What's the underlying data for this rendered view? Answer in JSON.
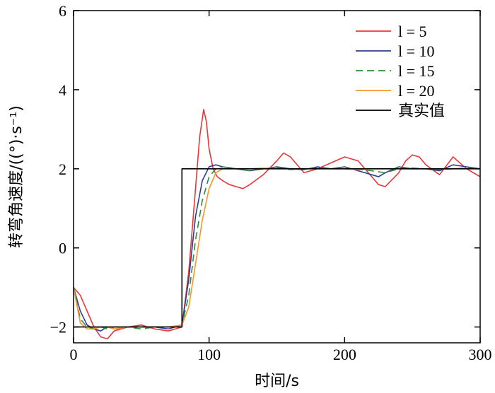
{
  "chart_data": {
    "type": "line",
    "xlabel": "时间/s",
    "ylabel": "转弯角速度/((°)·s⁻¹)",
    "xlim": [
      0,
      300
    ],
    "ylim": [
      -2.4,
      6
    ],
    "xticks": [
      0,
      100,
      200,
      300
    ],
    "yticks": [
      -2,
      0,
      2,
      4,
      6
    ],
    "xtick_labels": [
      "0",
      "100",
      "200",
      "300"
    ],
    "ytick_labels": [
      "−2",
      "0",
      "2",
      "4",
      "6"
    ],
    "grid": false,
    "legend_position": "top-right",
    "series": [
      {
        "name": "l = 5",
        "color": "#e8373a",
        "dash": "solid",
        "x": [
          0,
          5,
          10,
          15,
          20,
          25,
          30,
          40,
          50,
          60,
          70,
          80,
          85,
          90,
          93,
          96,
          98,
          100,
          103,
          106,
          110,
          115,
          120,
          125,
          130,
          140,
          150,
          155,
          160,
          170,
          180,
          190,
          200,
          210,
          220,
          225,
          230,
          240,
          245,
          250,
          255,
          260,
          270,
          280,
          290,
          300
        ],
        "y": [
          -1.0,
          -1.2,
          -1.6,
          -2.0,
          -2.25,
          -2.3,
          -2.1,
          -2.0,
          -1.95,
          -2.05,
          -2.1,
          -2.0,
          -0.6,
          1.5,
          2.8,
          3.5,
          3.2,
          2.5,
          2.0,
          1.8,
          1.7,
          1.6,
          1.55,
          1.5,
          1.6,
          1.85,
          2.2,
          2.4,
          2.3,
          1.9,
          2.0,
          2.15,
          2.3,
          2.2,
          1.8,
          1.6,
          1.55,
          1.9,
          2.2,
          2.35,
          2.3,
          2.1,
          1.85,
          2.3,
          2.0,
          1.8
        ]
      },
      {
        "name": "l = 10",
        "color": "#2b3f8f",
        "dash": "solid",
        "x": [
          0,
          5,
          10,
          15,
          20,
          25,
          30,
          40,
          50,
          60,
          70,
          80,
          85,
          90,
          95,
          100,
          105,
          110,
          120,
          130,
          140,
          150,
          160,
          170,
          180,
          190,
          200,
          210,
          220,
          225,
          230,
          240,
          250,
          260,
          270,
          280,
          290,
          300
        ],
        "y": [
          -1.0,
          -1.6,
          -1.95,
          -2.05,
          -2.1,
          -2.0,
          -2.05,
          -2.0,
          -2.0,
          -2.0,
          -2.05,
          -1.95,
          -0.8,
          0.8,
          1.7,
          2.05,
          2.1,
          2.05,
          2.0,
          1.95,
          2.0,
          2.05,
          2.0,
          1.98,
          2.05,
          2.0,
          2.05,
          1.95,
          1.85,
          1.8,
          1.9,
          2.05,
          2.0,
          2.0,
          1.95,
          2.1,
          2.05,
          2.0
        ]
      },
      {
        "name": "l = 15",
        "color": "#2e8b3a",
        "dash": "dashed",
        "x": [
          0,
          5,
          10,
          15,
          20,
          25,
          30,
          40,
          50,
          60,
          70,
          80,
          85,
          90,
          95,
          100,
          105,
          110,
          120,
          130,
          140,
          150,
          160,
          170,
          180,
          190,
          200,
          210,
          220,
          230,
          240,
          250,
          260,
          270,
          280,
          290,
          300
        ],
        "y": [
          -1.0,
          -1.8,
          -2.0,
          -2.05,
          -2.0,
          -2.05,
          -2.0,
          -2.0,
          -2.05,
          -2.0,
          -2.0,
          -1.95,
          -1.2,
          0.2,
          1.2,
          1.8,
          2.0,
          2.05,
          2.0,
          1.95,
          2.0,
          2.02,
          1.98,
          2.0,
          2.02,
          2.0,
          2.0,
          1.98,
          1.95,
          1.9,
          2.0,
          2.02,
          2.0,
          1.98,
          2.0,
          2.02,
          2.0
        ]
      },
      {
        "name": "l = 20",
        "color": "#f5962a",
        "dash": "solid",
        "x": [
          0,
          5,
          10,
          15,
          20,
          25,
          30,
          40,
          50,
          60,
          70,
          80,
          85,
          90,
          95,
          100,
          105,
          110,
          120,
          130,
          140,
          150,
          160,
          170,
          180,
          190,
          200,
          210,
          220,
          230,
          240,
          250,
          260,
          270,
          280,
          290,
          300
        ],
        "y": [
          -1.0,
          -1.9,
          -2.05,
          -2.05,
          -2.0,
          -2.0,
          -2.05,
          -2.0,
          -2.0,
          -2.0,
          -2.0,
          -1.95,
          -1.5,
          -0.4,
          0.7,
          1.5,
          1.9,
          2.0,
          2.0,
          2.0,
          2.02,
          2.0,
          2.0,
          2.0,
          2.0,
          2.0,
          2.0,
          1.98,
          2.0,
          2.0,
          2.0,
          2.0,
          2.0,
          2.0,
          2.0,
          2.0,
          2.0
        ]
      },
      {
        "name": "真实值",
        "color": "#000000",
        "dash": "solid",
        "x": [
          0,
          80,
          80,
          300
        ],
        "y": [
          -2,
          -2,
          2,
          2
        ]
      }
    ]
  }
}
